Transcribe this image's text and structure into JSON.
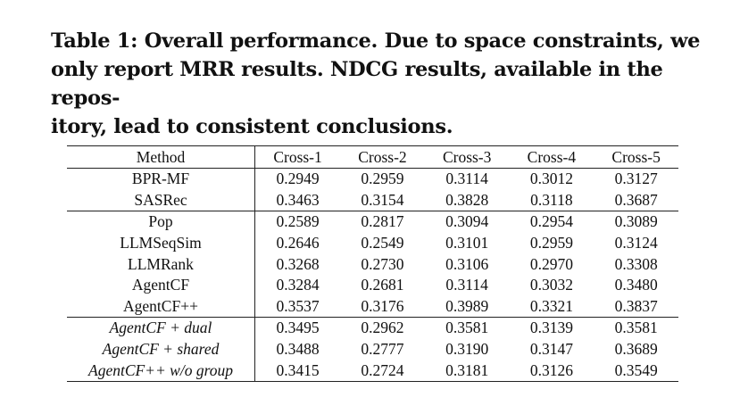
{
  "caption": {
    "line1": "Table 1: Overall performance. Due to space constraints, we",
    "line2": "only report MRR results. NDCG results, available in the repos-",
    "line3": "itory, lead to consistent conclusions."
  },
  "table": {
    "headers": [
      "Method",
      "Cross-1",
      "Cross-2",
      "Cross-3",
      "Cross-4",
      "Cross-5"
    ],
    "groups": [
      [
        {
          "method": "BPR-MF",
          "values": [
            "0.2949",
            "0.2959",
            "0.3114",
            "0.3012",
            "0.3127"
          ]
        },
        {
          "method": "SASRec",
          "values": [
            "0.3463",
            "0.3154",
            "0.3828",
            "0.3118",
            "0.3687"
          ]
        }
      ],
      [
        {
          "method": "Pop",
          "values": [
            "0.2589",
            "0.2817",
            "0.3094",
            "0.2954",
            "0.3089"
          ]
        },
        {
          "method": "LLMSeqSim",
          "values": [
            "0.2646",
            "0.2549",
            "0.3101",
            "0.2959",
            "0.3124"
          ]
        },
        {
          "method": "LLMRank",
          "values": [
            "0.3268",
            "0.2730",
            "0.3106",
            "0.2970",
            "0.3308"
          ]
        },
        {
          "method": "AgentCF",
          "values": [
            "0.3284",
            "0.2681",
            "0.3114",
            "0.3032",
            "0.3480"
          ]
        },
        {
          "method": "AgentCF++",
          "values": [
            "0.3537",
            "0.3176",
            "0.3989",
            "0.3321",
            "0.3837"
          ]
        }
      ],
      [
        {
          "method": "AgentCF + dual",
          "values": [
            "0.3495",
            "0.2962",
            "0.3581",
            "0.3139",
            "0.3581"
          ]
        },
        {
          "method": "AgentCF + shared",
          "values": [
            "0.3488",
            "0.2777",
            "0.3190",
            "0.3147",
            "0.3689"
          ]
        },
        {
          "method": "AgentCF++ w/o group",
          "values": [
            "0.3415",
            "0.2724",
            "0.3181",
            "0.3126",
            "0.3549"
          ]
        }
      ]
    ]
  }
}
